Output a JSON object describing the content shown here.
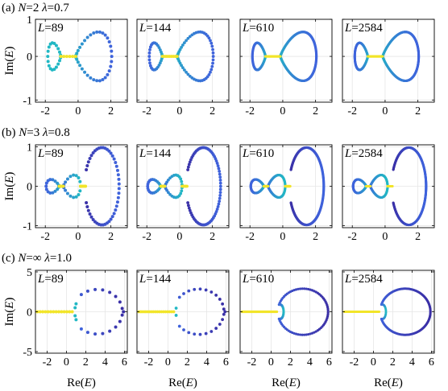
{
  "chart_data": {
    "type": "scatter",
    "colors": {
      "yellow": "#f2e52a",
      "teal": "#22b8c4",
      "blue": "#3f63dc",
      "indigo": "#3a2fa6",
      "grid": "#e6e6e6",
      "frame": "#000000"
    },
    "xlabel": "Re(E)",
    "ylabel": "Im(E)",
    "rows": [
      {
        "label": "(a) N=2 λ=0.7",
        "label_parts": {
          "prefix": "(a) ",
          "N": "N",
          "eqN": "=2 ",
          "lambda": "λ",
          "eqL": "=0.7"
        },
        "xlim": [
          -2.6,
          3.0
        ],
        "ylim": [
          -1.05,
          0.85
        ],
        "xticks": [
          -2,
          0,
          2
        ],
        "yticks": [
          -1,
          0,
          1
        ],
        "show_ylabel_ticks": true,
        "panels": [
          {
            "L": "89"
          },
          {
            "L": "144"
          },
          {
            "L": "610"
          },
          {
            "L": "2584"
          }
        ]
      },
      {
        "label": "(b) N=3 λ=0.8",
        "label_parts": {
          "prefix": "(b) ",
          "N": "N",
          "eqN": "=3 ",
          "lambda": "λ",
          "eqL": "=0.8"
        },
        "xlim": [
          -2.6,
          3.0
        ],
        "ylim": [
          -1.05,
          1.05
        ],
        "xticks": [
          -2,
          0,
          2
        ],
        "yticks": [
          -1,
          0,
          1
        ],
        "panels": [
          {
            "L": "89"
          },
          {
            "L": "144"
          },
          {
            "L": "610"
          },
          {
            "L": "2584"
          }
        ]
      },
      {
        "label": "(c) N=∞ λ=1.0",
        "label_parts": {
          "prefix": "(c) ",
          "N": "N",
          "eqN": "=∞ ",
          "lambda": "λ",
          "eqL": "=1.0"
        },
        "xlim": [
          -3.2,
          6.3
        ],
        "ylim": [
          -5.2,
          5.2
        ],
        "xticks": [
          -2,
          0,
          2,
          4,
          6
        ],
        "yticks": [
          -5,
          0,
          5
        ],
        "panels": [
          {
            "L": "89"
          },
          {
            "L": "144"
          },
          {
            "L": "610"
          },
          {
            "L": "2584"
          }
        ]
      }
    ],
    "grid": true
  }
}
